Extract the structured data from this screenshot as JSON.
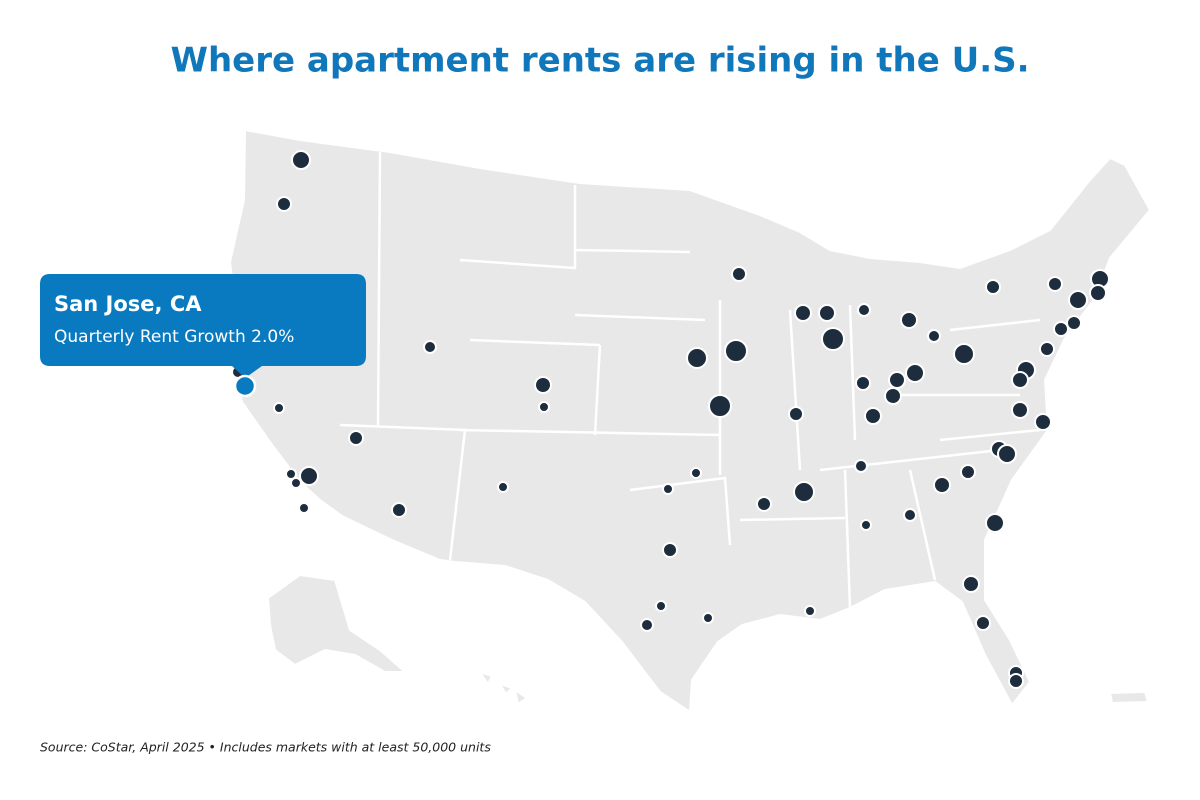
{
  "title": "Where apartment rents are rising in the U.S.",
  "tooltip": {
    "market": "San Jose, CA",
    "detail": "Quarterly Rent Growth 2.0%"
  },
  "source": "Source: CoStar, April 2025 • Includes markets with at least 50,000  units"
}
